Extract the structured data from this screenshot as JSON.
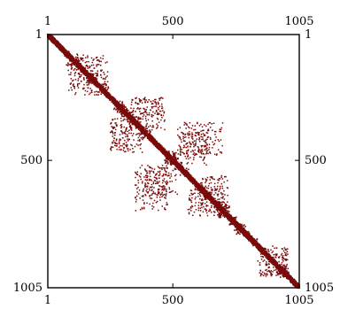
{
  "chart_data": {
    "type": "heatmap",
    "title": "",
    "xlabel": "",
    "ylabel": "",
    "xlim": [
      1,
      1005
    ],
    "ylim": [
      1,
      1005
    ],
    "x_ticks": [
      {
        "value": 1,
        "label": "1"
      },
      {
        "value": 500,
        "label": "500"
      },
      {
        "value": 1005,
        "label": "1005"
      }
    ],
    "y_ticks": [
      {
        "value": 1,
        "label": "1"
      },
      {
        "value": 500,
        "label": "500"
      },
      {
        "value": 1005,
        "label": "1005"
      }
    ],
    "y_axis_inverted": true,
    "grid": false,
    "marker_color": "#7a0b0b",
    "pattern": {
      "diagonal_band_halfwidth": 12,
      "off_diagonal_blocks": [
        {
          "row_range": [
            250,
            330
          ],
          "col_range": [
            330,
            460
          ]
        },
        {
          "row_range": [
            360,
            470
          ],
          "col_range": [
            250,
            380
          ]
        },
        {
          "row_range": [
            390,
            520
          ],
          "col_range": [
            520,
            640
          ]
        },
        {
          "row_range": [
            520,
            700
          ],
          "col_range": [
            350,
            480
          ]
        },
        {
          "row_range": [
            560,
            700
          ],
          "col_range": [
            600,
            720
          ]
        },
        {
          "row_range": [
            80,
            200
          ],
          "col_range": [
            120,
            240
          ]
        },
        {
          "row_range": [
            850,
            960
          ],
          "col_range": [
            840,
            960
          ]
        }
      ]
    }
  }
}
